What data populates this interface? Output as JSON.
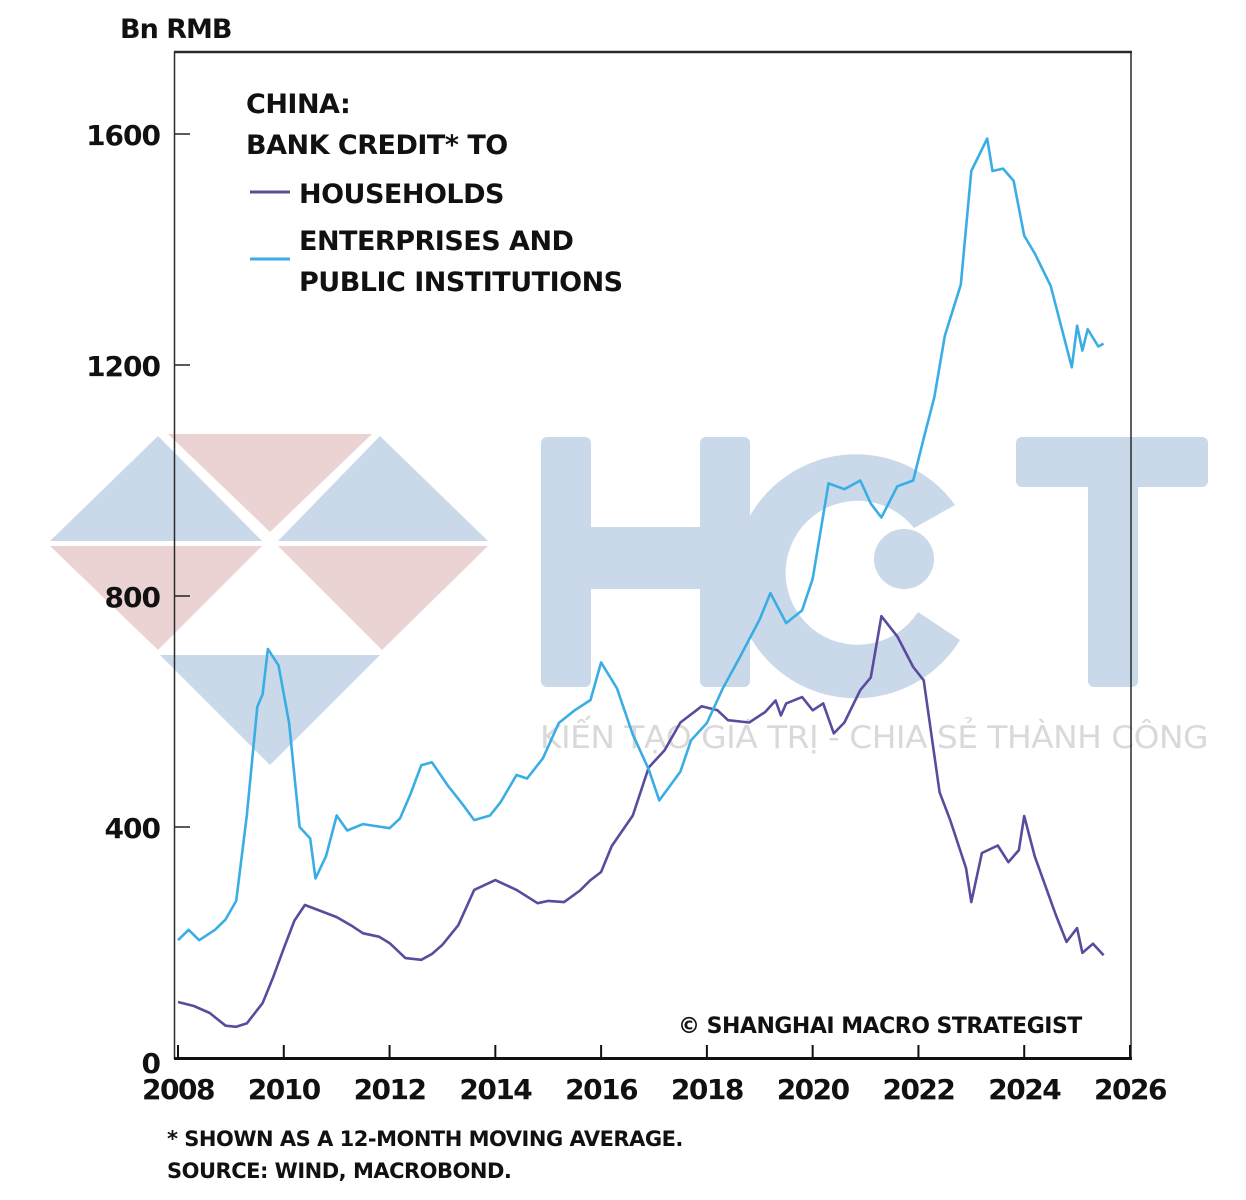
{
  "chart_data": {
    "type": "line",
    "unit_label": "Bn RMB",
    "legend": {
      "title_line1": "CHINA:",
      "title_line2": "BANK CREDIT* TO"
    },
    "xlim": [
      2008,
      2026
    ],
    "ylim": [
      0,
      1700
    ],
    "x_ticks": [
      2008,
      2010,
      2012,
      2014,
      2016,
      2018,
      2020,
      2022,
      2024,
      2026
    ],
    "x_tick_labels": [
      "2008",
      "2010",
      "2012",
      "2014",
      "2016",
      "2018",
      "2020",
      "2022",
      "2024",
      "2026"
    ],
    "y_ticks": [
      0,
      400,
      800,
      1200,
      1600
    ],
    "y_tick_labels": [
      "0",
      "400",
      "800",
      "1200",
      "1600"
    ],
    "series": [
      {
        "name": "HOUSEHOLDS",
        "color": "#5b4b9c",
        "points": [
          [
            2008.0,
            97
          ],
          [
            2008.3,
            90
          ],
          [
            2008.6,
            78
          ],
          [
            2008.9,
            56
          ],
          [
            2009.1,
            54
          ],
          [
            2009.3,
            60
          ],
          [
            2009.6,
            95
          ],
          [
            2009.8,
            140
          ],
          [
            2010.0,
            190
          ],
          [
            2010.2,
            238
          ],
          [
            2010.4,
            265
          ],
          [
            2010.6,
            258
          ],
          [
            2011.0,
            244
          ],
          [
            2011.3,
            228
          ],
          [
            2011.5,
            216
          ],
          [
            2011.8,
            210
          ],
          [
            2012.0,
            199
          ],
          [
            2012.3,
            173
          ],
          [
            2012.6,
            170
          ],
          [
            2012.8,
            180
          ],
          [
            2013.0,
            196
          ],
          [
            2013.3,
            230
          ],
          [
            2013.6,
            291
          ],
          [
            2014.0,
            308
          ],
          [
            2014.4,
            291
          ],
          [
            2014.8,
            268
          ],
          [
            2015.0,
            272
          ],
          [
            2015.3,
            270
          ],
          [
            2015.6,
            290
          ],
          [
            2015.8,
            308
          ],
          [
            2016.0,
            322
          ],
          [
            2016.2,
            367
          ],
          [
            2016.6,
            420
          ],
          [
            2016.9,
            503
          ],
          [
            2017.2,
            533
          ],
          [
            2017.5,
            581
          ],
          [
            2017.9,
            609
          ],
          [
            2018.2,
            602
          ],
          [
            2018.4,
            585
          ],
          [
            2018.8,
            581
          ],
          [
            2019.1,
            599
          ],
          [
            2019.3,
            619
          ],
          [
            2019.4,
            593
          ],
          [
            2019.5,
            614
          ],
          [
            2019.8,
            625
          ],
          [
            2020.0,
            602
          ],
          [
            2020.2,
            614
          ],
          [
            2020.4,
            562
          ],
          [
            2020.6,
            581
          ],
          [
            2020.9,
            637
          ],
          [
            2021.1,
            659
          ],
          [
            2021.3,
            765
          ],
          [
            2021.6,
            730
          ],
          [
            2021.9,
            677
          ],
          [
            2022.1,
            654
          ],
          [
            2022.4,
            460
          ],
          [
            2022.6,
            412
          ],
          [
            2022.9,
            329
          ],
          [
            2023.0,
            270
          ],
          [
            2023.2,
            355
          ],
          [
            2023.5,
            368
          ],
          [
            2023.7,
            339
          ],
          [
            2023.9,
            360
          ],
          [
            2024.0,
            419
          ],
          [
            2024.2,
            349
          ],
          [
            2024.6,
            247
          ],
          [
            2024.8,
            201
          ],
          [
            2025.0,
            225
          ],
          [
            2025.1,
            182
          ],
          [
            2025.3,
            198
          ],
          [
            2025.5,
            178
          ]
        ]
      },
      {
        "name": "ENTERPRISES AND PUBLIC INSTITUTIONS",
        "name_line1": "ENTERPRISES AND",
        "name_line2": "PUBLIC INSTITUTIONS",
        "color": "#3aaee4",
        "points": [
          [
            2008.0,
            204
          ],
          [
            2008.2,
            222
          ],
          [
            2008.4,
            204
          ],
          [
            2008.7,
            222
          ],
          [
            2008.9,
            240
          ],
          [
            2009.1,
            272
          ],
          [
            2009.3,
            420
          ],
          [
            2009.5,
            608
          ],
          [
            2009.6,
            630
          ],
          [
            2009.7,
            708
          ],
          [
            2009.9,
            680
          ],
          [
            2010.1,
            580
          ],
          [
            2010.3,
            400
          ],
          [
            2010.5,
            380
          ],
          [
            2010.6,
            311
          ],
          [
            2010.8,
            350
          ],
          [
            2011.0,
            420
          ],
          [
            2011.2,
            394
          ],
          [
            2011.5,
            405
          ],
          [
            2012.0,
            398
          ],
          [
            2012.2,
            415
          ],
          [
            2012.4,
            458
          ],
          [
            2012.6,
            507
          ],
          [
            2012.8,
            512
          ],
          [
            2013.1,
            472
          ],
          [
            2013.4,
            437
          ],
          [
            2013.6,
            412
          ],
          [
            2013.9,
            420
          ],
          [
            2014.1,
            443
          ],
          [
            2014.4,
            490
          ],
          [
            2014.6,
            484
          ],
          [
            2014.9,
            519
          ],
          [
            2015.2,
            580
          ],
          [
            2015.5,
            602
          ],
          [
            2015.8,
            620
          ],
          [
            2016.0,
            685
          ],
          [
            2016.3,
            640
          ],
          [
            2016.6,
            560
          ],
          [
            2016.9,
            500
          ],
          [
            2017.1,
            446
          ],
          [
            2017.5,
            496
          ],
          [
            2017.7,
            550
          ],
          [
            2018.0,
            580
          ],
          [
            2018.3,
            640
          ],
          [
            2018.6,
            690
          ],
          [
            2019.0,
            760
          ],
          [
            2019.2,
            805
          ],
          [
            2019.5,
            753
          ],
          [
            2019.8,
            775
          ],
          [
            2020.0,
            830
          ],
          [
            2020.3,
            995
          ],
          [
            2020.6,
            985
          ],
          [
            2020.9,
            1000
          ],
          [
            2021.1,
            960
          ],
          [
            2021.3,
            936
          ],
          [
            2021.6,
            990
          ],
          [
            2021.9,
            1000
          ],
          [
            2022.1,
            1073
          ],
          [
            2022.3,
            1144
          ],
          [
            2022.5,
            1251
          ],
          [
            2022.8,
            1339
          ],
          [
            2023.0,
            1536
          ],
          [
            2023.3,
            1592
          ],
          [
            2023.4,
            1536
          ],
          [
            2023.6,
            1540
          ],
          [
            2023.8,
            1519
          ],
          [
            2024.0,
            1424
          ],
          [
            2024.2,
            1393
          ],
          [
            2024.5,
            1337
          ],
          [
            2024.9,
            1196
          ],
          [
            2025.0,
            1268
          ],
          [
            2025.1,
            1225
          ],
          [
            2025.2,
            1262
          ],
          [
            2025.4,
            1232
          ],
          [
            2025.5,
            1237
          ]
        ]
      }
    ],
    "annotations": {
      "copyright": "© SHANGHAI MACRO STRATEGIST",
      "footnote": "* SHOWN AS A 12-MONTH MOVING AVERAGE.",
      "source": "SOURCE: WIND, MACROBOND."
    },
    "grid": false,
    "legend_position": "top-left"
  },
  "watermark": {
    "letters": "HCT",
    "tagline": "KIẾN TẠO GIÁ TRỊ - CHIA SẺ THÀNH CÔNG",
    "blue": "#c9d9ea",
    "red": "#ecd3d3"
  }
}
